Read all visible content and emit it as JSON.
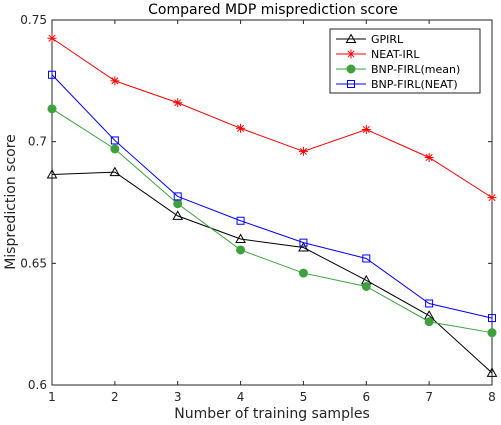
{
  "chart_data": {
    "type": "line",
    "title": "Compared MDP misprediction score",
    "xlabel": "Number of training samples",
    "ylabel": "Misprediction score",
    "x": [
      1,
      2,
      3,
      4,
      5,
      6,
      7,
      8
    ],
    "xlim": [
      1,
      8
    ],
    "ylim": [
      0.6,
      0.75
    ],
    "xticks": [
      "1",
      "2",
      "3",
      "4",
      "5",
      "6",
      "7",
      "8"
    ],
    "yticks": [
      "0.6",
      "0.65",
      "0.7",
      "0.75"
    ],
    "legend_position": "top-right",
    "grid": false,
    "series": [
      {
        "name": "GPIRL",
        "color": "#000000",
        "marker": "triangle",
        "values": [
          0.6865,
          0.6875,
          0.6695,
          0.66,
          0.6565,
          0.643,
          0.6285,
          0.605
        ]
      },
      {
        "name": "NEAT-IRL",
        "color": "#ff0000",
        "marker": "star",
        "values": [
          0.7425,
          0.725,
          0.716,
          0.7055,
          0.696,
          0.705,
          0.6935,
          0.677
        ]
      },
      {
        "name": "BNP-FIRL(mean)",
        "color": "#3ea13e",
        "marker": "circle",
        "values": [
          0.7135,
          0.697,
          0.6745,
          0.6555,
          0.646,
          0.6405,
          0.626,
          0.6215
        ]
      },
      {
        "name": "BNP-FIRL(NEAT)",
        "color": "#0000ff",
        "marker": "square",
        "values": [
          0.7275,
          0.7005,
          0.6775,
          0.6675,
          0.6585,
          0.652,
          0.6335,
          0.6275
        ]
      }
    ]
  }
}
